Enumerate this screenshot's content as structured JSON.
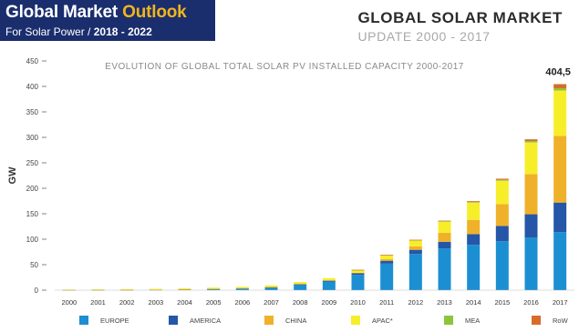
{
  "banner": {
    "title_main": "Global Market",
    "title_accent": "Outlook",
    "subtitle_main": "For Solar Power /",
    "subtitle_years": "2018 - 2022",
    "bg_color": "#1a2e6e",
    "accent_color": "#f2b51c"
  },
  "heading": {
    "title": "GLOBAL SOLAR MARKET",
    "subtitle": "UPDATE 2000 - 2017"
  },
  "chart_data": {
    "type": "bar",
    "stacked": true,
    "title": "EVOLUTION OF GLOBAL TOTAL SOLAR PV INSTALLED CAPACITY 2000-2017",
    "ylabel": "GW",
    "xlabel": "",
    "ylim": [
      0,
      450
    ],
    "yticks": [
      0,
      50,
      100,
      150,
      200,
      250,
      300,
      350,
      400,
      450
    ],
    "grid": false,
    "legend_position": "bottom",
    "categories": [
      "2000",
      "2001",
      "2002",
      "2003",
      "2004",
      "2005",
      "2006",
      "2007",
      "2008",
      "2009",
      "2010",
      "2011",
      "2012",
      "2013",
      "2014",
      "2015",
      "2016",
      "2017"
    ],
    "series": [
      {
        "name": "EUROPE",
        "color": "#1b8fd2",
        "values": [
          0.2,
          0.3,
          0.5,
          0.7,
          1.3,
          2.3,
          3.3,
          5.3,
          11,
          17,
          30,
          52,
          71,
          82,
          89,
          96,
          103,
          114
        ]
      },
      {
        "name": "AMERICA",
        "color": "#2556a8",
        "values": [
          0.1,
          0.1,
          0.2,
          0.3,
          0.4,
          0.5,
          0.6,
          0.8,
          1.3,
          2,
          3.3,
          5.7,
          8.2,
          13,
          21,
          30,
          46,
          58
        ]
      },
      {
        "name": "CHINA",
        "color": "#f0b12a",
        "values": [
          0.1,
          0.1,
          0.1,
          0.1,
          0.1,
          0.1,
          0.1,
          0.1,
          0.1,
          0.3,
          0.8,
          3.1,
          6.8,
          17.7,
          28,
          43,
          79,
          131
        ]
      },
      {
        "name": "APAC*",
        "color": "#f7ee2a",
        "values": [
          1.0,
          1.2,
          1.4,
          1.6,
          1.8,
          2.1,
          2.5,
          3,
          3.6,
          4.2,
          5.5,
          8,
          12,
          22,
          34,
          46,
          62,
          89
        ]
      },
      {
        "name": "MEA",
        "color": "#8cc43d",
        "values": [
          0,
          0,
          0,
          0,
          0,
          0,
          0,
          0,
          0,
          0,
          0.1,
          0.2,
          0.4,
          0.7,
          1.2,
          1.6,
          2.6,
          4.5
        ]
      },
      {
        "name": "RoW",
        "color": "#d96a2a",
        "values": [
          0,
          0,
          0,
          0,
          0,
          0,
          0,
          0,
          0,
          0,
          0.1,
          0.2,
          0.5,
          1.0,
          1.5,
          2.2,
          3.5,
          8
        ]
      }
    ],
    "annotation": {
      "category": "2017",
      "label": "404,5"
    }
  }
}
